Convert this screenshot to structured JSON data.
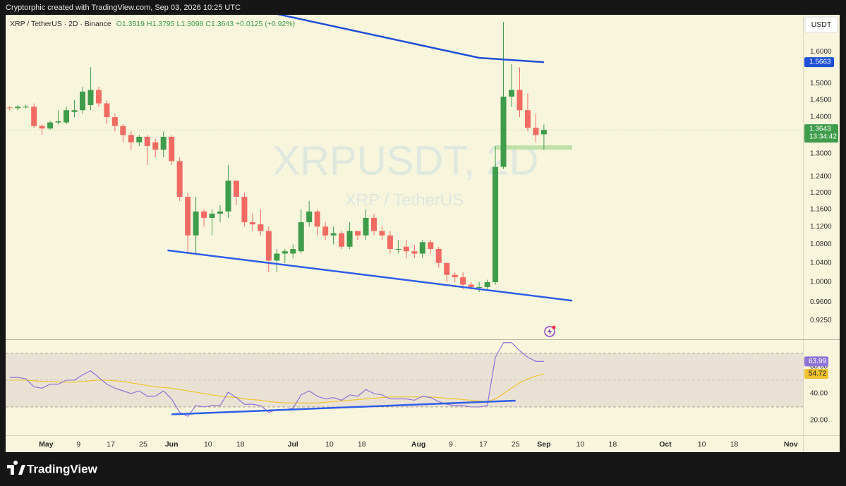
{
  "header": "Cryptorphic created with TradingView.com, Sep 03, 2026 10:25 UTC",
  "footer_brand": "TradingView",
  "chart_data": {
    "type": "candlestick",
    "legend": {
      "symbol": "XRP / TetherUS · 2D · Binance",
      "open": "O1.3519",
      "high": "H1.3795",
      "low": "L1.3098",
      "close": "C1.3643",
      "change": "+0.0125 (+0.92%)"
    },
    "watermark": "XRPUSDT, 2D",
    "watermark_subtitle": "XRP / TetherUS",
    "currency": "USDT",
    "countdown": "13:34:42",
    "up_color": "#3f9c4b",
    "down_color": "#f26b63",
    "x": [
      "Apr 22",
      "Apr 24",
      "Apr 26",
      "Apr 28",
      "Apr 30",
      "May 2",
      "May 4",
      "May 6",
      "May 8",
      "May 10",
      "May 12",
      "May 14",
      "May 16",
      "May 18",
      "May 20",
      "May 22",
      "May 24",
      "May 26",
      "May 28",
      "May 30",
      "Jun 1",
      "Jun 3",
      "Jun 5",
      "Jun 7",
      "Jun 9",
      "Jun 11",
      "Jun 13",
      "Jun 15",
      "Jun 17",
      "Jun 19",
      "Jun 21",
      "Jun 23",
      "Jun 25",
      "Jun 27",
      "Jun 29",
      "Jul 1",
      "Jul 3",
      "Jul 5",
      "Jul 7",
      "Jul 9",
      "Jul 11",
      "Jul 13",
      "Jul 15",
      "Jul 17",
      "Jul 19",
      "Jul 21",
      "Jul 23",
      "Jul 25",
      "Jul 27",
      "Jul 29",
      "Jul 31",
      "Aug 2",
      "Aug 4",
      "Aug 6",
      "Aug 8",
      "Aug 10",
      "Aug 12",
      "Aug 14",
      "Aug 16",
      "Aug 18",
      "Aug 20",
      "Aug 22",
      "Aug 24",
      "Aug 26",
      "Aug 28",
      "Aug 30",
      "Sep 1"
    ],
    "open": [
      1.428,
      1.426,
      1.43,
      1.43,
      1.375,
      1.368,
      1.385,
      1.385,
      1.415,
      1.42,
      1.435,
      1.48,
      1.44,
      1.4,
      1.375,
      1.35,
      1.33,
      1.345,
      1.33,
      1.31,
      1.345,
      1.28,
      1.19,
      1.1,
      1.155,
      1.14,
      1.15,
      1.155,
      1.23,
      1.19,
      1.13,
      1.125,
      1.11,
      1.045,
      1.06,
      1.06,
      1.065,
      1.13,
      1.155,
      1.12,
      1.1,
      1.105,
      1.075,
      1.11,
      1.1,
      1.14,
      1.11,
      1.1,
      1.07,
      1.075,
      1.065,
      1.06,
      1.085,
      1.07,
      1.04,
      1.015,
      1.01,
      0.995,
      0.99,
      0.99,
      1.0,
      1.265,
      1.46,
      1.48,
      1.42,
      1.37,
      1.3519
    ],
    "high": [
      1.432,
      1.435,
      1.435,
      1.44,
      1.38,
      1.39,
      1.42,
      1.43,
      1.45,
      1.49,
      1.55,
      1.49,
      1.45,
      1.41,
      1.38,
      1.36,
      1.35,
      1.35,
      1.34,
      1.36,
      1.35,
      1.29,
      1.2,
      1.19,
      1.16,
      1.16,
      1.17,
      1.27,
      1.23,
      1.2,
      1.15,
      1.16,
      1.12,
      1.07,
      1.07,
      1.08,
      1.16,
      1.18,
      1.16,
      1.13,
      1.12,
      1.11,
      1.13,
      1.11,
      1.16,
      1.15,
      1.12,
      1.11,
      1.09,
      1.09,
      1.08,
      1.09,
      1.09,
      1.075,
      1.04,
      1.02,
      1.02,
      1.0,
      1.0,
      1.005,
      1.32,
      1.7,
      1.56,
      1.55,
      1.47,
      1.41,
      1.3795
    ],
    "low": [
      1.42,
      1.42,
      1.425,
      1.37,
      1.35,
      1.365,
      1.38,
      1.38,
      1.4,
      1.41,
      1.42,
      1.43,
      1.38,
      1.36,
      1.33,
      1.31,
      1.32,
      1.27,
      1.29,
      1.29,
      1.27,
      1.18,
      1.06,
      1.06,
      1.12,
      1.1,
      1.13,
      1.14,
      1.17,
      1.12,
      1.11,
      1.1,
      1.02,
      1.02,
      1.04,
      1.05,
      1.06,
      1.12,
      1.1,
      1.09,
      1.08,
      1.07,
      1.07,
      1.09,
      1.09,
      1.1,
      1.09,
      1.06,
      1.06,
      1.05,
      1.05,
      1.05,
      1.06,
      1.03,
      1.0,
      1.0,
      0.985,
      0.985,
      0.98,
      0.985,
      0.995,
      1.26,
      1.43,
      1.4,
      1.36,
      1.33,
      1.3098
    ],
    "close": [
      1.426,
      1.43,
      1.43,
      1.375,
      1.368,
      1.385,
      1.388,
      1.42,
      1.42,
      1.475,
      1.48,
      1.44,
      1.4,
      1.375,
      1.35,
      1.33,
      1.345,
      1.32,
      1.31,
      1.345,
      1.28,
      1.19,
      1.1,
      1.155,
      1.14,
      1.15,
      1.155,
      1.23,
      1.19,
      1.13,
      1.125,
      1.11,
      1.045,
      1.06,
      1.065,
      1.07,
      1.13,
      1.155,
      1.12,
      1.1,
      1.105,
      1.075,
      1.11,
      1.1,
      1.14,
      1.11,
      1.1,
      1.07,
      1.07,
      1.065,
      1.06,
      1.085,
      1.07,
      1.04,
      1.015,
      1.01,
      0.995,
      0.99,
      0.99,
      1.0,
      1.265,
      1.46,
      1.48,
      1.42,
      1.37,
      1.35,
      1.3643
    ],
    "xlim": [
      "Apr 21",
      "Nov 4"
    ],
    "xticks": [
      {
        "value": "May 1",
        "label": "May"
      },
      {
        "value": "May 9",
        "label": "9"
      },
      {
        "value": "May 17",
        "label": "17"
      },
      {
        "value": "May 25",
        "label": "25"
      },
      {
        "value": "Jun 1",
        "label": "Jun"
      },
      {
        "value": "Jun 10",
        "label": "10"
      },
      {
        "value": "Jun 18",
        "label": "18"
      },
      {
        "value": "Jul 1",
        "label": "Jul"
      },
      {
        "value": "Jul 10",
        "label": "10"
      },
      {
        "value": "Jul 18",
        "label": "18"
      },
      {
        "value": "Aug 1",
        "label": "Aug"
      },
      {
        "value": "Aug 9",
        "label": "9"
      },
      {
        "value": "Aug 17",
        "label": "17"
      },
      {
        "value": "Aug 25",
        "label": "25"
      },
      {
        "value": "Sep 1",
        "label": "Sep"
      },
      {
        "value": "Sep 10",
        "label": "10"
      },
      {
        "value": "Sep 18",
        "label": "18"
      },
      {
        "value": "Oct 1",
        "label": "Oct"
      },
      {
        "value": "Oct 10",
        "label": "10"
      },
      {
        "value": "Oct 18",
        "label": "18"
      },
      {
        "value": "Nov 1",
        "label": "Nov"
      }
    ],
    "log_scale": true,
    "grid": false,
    "ylim": [
      0.89,
      1.725
    ],
    "yticks": [
      {
        "value": 1.6,
        "label": "1.6000"
      },
      {
        "value": 1.5,
        "label": "1.5000"
      },
      {
        "value": 1.45,
        "label": "1.4500"
      },
      {
        "value": 1.4,
        "label": "1.4000"
      },
      {
        "value": 1.3,
        "label": "1.3000"
      },
      {
        "value": 1.24,
        "label": "1.2400"
      },
      {
        "value": 1.2,
        "label": "1.2000"
      },
      {
        "value": 1.16,
        "label": "1.1600"
      },
      {
        "value": 1.12,
        "label": "1.1200"
      },
      {
        "value": 1.08,
        "label": "1.0800"
      },
      {
        "value": 1.04,
        "label": "1.0400"
      },
      {
        "value": 1.0,
        "label": "1.0000"
      },
      {
        "value": 0.96,
        "label": "0.9600"
      },
      {
        "value": 0.925,
        "label": "0.9250"
      }
    ],
    "trendlines": [
      {
        "x": [
          "Jun 27",
          "Aug 16",
          "Sep 1"
        ],
        "y": [
          1.728,
          1.58,
          1.5663
        ],
        "color": "#1f4fd6",
        "label_color": "#1f4fd6"
      },
      {
        "x": [
          "May 31",
          "Sep 8"
        ],
        "y": [
          1.067,
          0.963
        ],
        "color": "#2e5de8"
      }
    ],
    "zone": {
      "x": [
        "Aug 20",
        "Sep 8"
      ],
      "y": 1.316,
      "color": "#bfe0a9"
    },
    "rsi": {
      "color": "#8f72d8",
      "ma_color": "#f0c232",
      "band": [
        30,
        70
      ],
      "ylim": [
        8.9,
        80.5
      ],
      "yticks": [
        {
          "value": 60,
          "label": "60.00"
        },
        {
          "value": 40,
          "label": "40.00"
        },
        {
          "value": 20,
          "label": "20.00"
        }
      ],
      "values": [
        52,
        52,
        51,
        45,
        44,
        47,
        47,
        50,
        50,
        54,
        57,
        52,
        47,
        44,
        42,
        40,
        42,
        38,
        38,
        42,
        36,
        26,
        23,
        31,
        30,
        31,
        31,
        41,
        37,
        32,
        32,
        31,
        26,
        28,
        28,
        29,
        39,
        42,
        38,
        36,
        37,
        35,
        39,
        38,
        43,
        40,
        39,
        36,
        36,
        36,
        35,
        38,
        37,
        34,
        32,
        31,
        31,
        30,
        30,
        31,
        67,
        78,
        78,
        72,
        67,
        64,
        63.99
      ],
      "ma": [
        50,
        50,
        50,
        49.5,
        49,
        49,
        48.5,
        48.5,
        48.5,
        49,
        49.5,
        50,
        50,
        49.5,
        49,
        48,
        47,
        46,
        45,
        44.5,
        44,
        43,
        42,
        41,
        40,
        39,
        38,
        37.5,
        37,
        36,
        35.5,
        35,
        34,
        33.5,
        33,
        33,
        33,
        33,
        33,
        33.5,
        34,
        34.5,
        35,
        35.5,
        36,
        36.5,
        37,
        37.5,
        37.5,
        37.5,
        37.5,
        37.5,
        37.5,
        37,
        36.5,
        36,
        35.5,
        35,
        34.5,
        34,
        36,
        40,
        44,
        48,
        51,
        53,
        54.72
      ],
      "trendline": {
        "x": [
          "Jun 1",
          "Aug 25"
        ],
        "y": [
          24.5,
          34.7
        ],
        "color": "#2e5de8"
      }
    }
  }
}
